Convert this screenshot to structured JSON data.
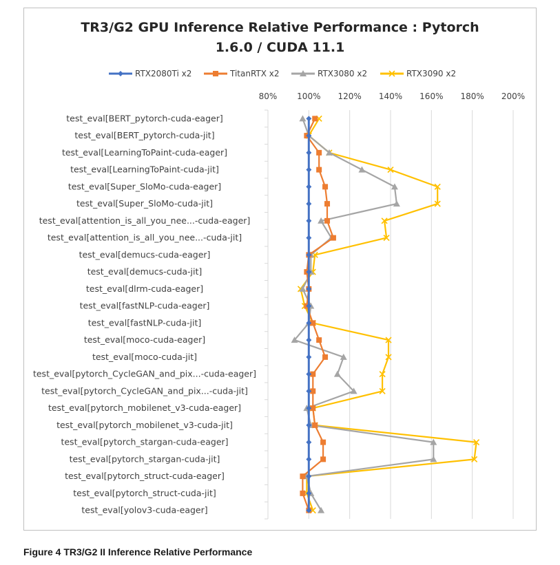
{
  "chart_data": {
    "type": "line",
    "title_line1": "TR3/G2 GPU Inference Relative Performance : Pytorch",
    "title_line2": "1.6.0 / CUDA 11.1",
    "xlabel": "",
    "ylabel": "",
    "xlim": [
      0.8,
      2.0
    ],
    "x_ticks": [
      "80%",
      "100%",
      "120%",
      "140%",
      "160%",
      "180%",
      "200%"
    ],
    "grid": "vertical",
    "legend_position": "top",
    "categories": [
      "test_eval[BERT_pytorch-cuda-eager]",
      "test_eval[BERT_pytorch-cuda-jit]",
      "test_eval[LearningToPaint-cuda-eager]",
      "test_eval[LearningToPaint-cuda-jit]",
      "test_eval[Super_SloMo-cuda-eager]",
      "test_eval[Super_SloMo-cuda-jit]",
      "test_eval[attention_is_all_you_nee...-cuda-eager]",
      "test_eval[attention_is_all_you_nee...-cuda-jit]",
      "test_eval[demucs-cuda-eager]",
      "test_eval[demucs-cuda-jit]",
      "test_eval[dlrm-cuda-eager]",
      "test_eval[fastNLP-cuda-eager]",
      "test_eval[fastNLP-cuda-jit]",
      "test_eval[moco-cuda-eager]",
      "test_eval[moco-cuda-jit]",
      "test_eval[pytorch_CycleGAN_and_pix...-cuda-eager]",
      "test_eval[pytorch_CycleGAN_and_pix...-cuda-jit]",
      "test_eval[pytorch_mobilenet_v3-cuda-eager]",
      "test_eval[pytorch_mobilenet_v3-cuda-jit]",
      "test_eval[pytorch_stargan-cuda-eager]",
      "test_eval[pytorch_stargan-cuda-jit]",
      "test_eval[pytorch_struct-cuda-eager]",
      "test_eval[pytorch_struct-cuda-jit]",
      "test_eval[yolov3-cuda-eager]"
    ],
    "series": [
      {
        "name": "RTX2080Ti x2",
        "color": "#4472C4",
        "marker": "diamond",
        "values": [
          1.0,
          1.0,
          1.0,
          1.0,
          1.0,
          1.0,
          1.0,
          1.0,
          1.0,
          1.0,
          1.0,
          1.0,
          1.0,
          1.0,
          1.0,
          1.0,
          1.0,
          1.0,
          1.0,
          1.0,
          1.0,
          1.0,
          1.0,
          1.0
        ]
      },
      {
        "name": "TitanRTX x2",
        "color": "#ED7D31",
        "marker": "square",
        "values": [
          1.03,
          0.99,
          1.05,
          1.05,
          1.08,
          1.09,
          1.09,
          1.12,
          1.0,
          0.99,
          1.0,
          0.99,
          1.02,
          1.05,
          1.08,
          1.02,
          1.02,
          1.02,
          1.03,
          1.07,
          1.07,
          0.97,
          0.97,
          1.0
        ]
      },
      {
        "name": "RTX3080 x2",
        "color": "#A5A5A5",
        "marker": "triangle",
        "values": [
          0.97,
          1.0,
          1.1,
          1.26,
          1.42,
          1.43,
          1.06,
          1.11,
          1.01,
          1.01,
          0.97,
          1.01,
          1.0,
          0.93,
          1.17,
          1.14,
          1.22,
          0.99,
          1.01,
          1.61,
          1.61,
          0.99,
          1.01,
          1.06
        ]
      },
      {
        "name": "RTX3090 x2",
        "color": "#FFC000",
        "marker": "x",
        "values": [
          1.05,
          1.0,
          1.1,
          1.4,
          1.63,
          1.63,
          1.37,
          1.38,
          1.03,
          1.02,
          0.96,
          0.98,
          1.02,
          1.39,
          1.39,
          1.36,
          1.36,
          1.02,
          1.03,
          1.82,
          1.81,
          0.99,
          0.99,
          1.02
        ]
      }
    ]
  },
  "caption": "Figure 4 TR3/G2 II Inference Relative Performance"
}
